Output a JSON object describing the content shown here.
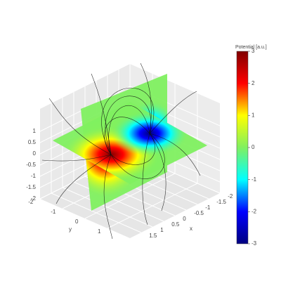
{
  "chart_data": {
    "type": "surface",
    "colorbar_title": "Potential [a.u.]",
    "clim": [
      -3,
      3
    ],
    "colorbar_ticks": [
      -3,
      -2,
      -1,
      0,
      1,
      2,
      3
    ],
    "colorscale": [
      "#000080",
      "#0000ff",
      "#00ffff",
      "#80f060",
      "#ffff00",
      "#ff0000",
      "#800000"
    ],
    "xlabel": "x",
    "ylabel": "y",
    "xlim": [
      -2,
      2
    ],
    "ylim": [
      -2,
      2
    ],
    "zlim": [
      -2,
      2
    ],
    "xticks": [
      -2,
      -1.5,
      -1,
      -0.5,
      0,
      0.5,
      1,
      1.5
    ],
    "yticks": [
      -2,
      -1,
      0,
      1
    ],
    "zticks": [
      -2,
      -1.5,
      -1,
      -0.5,
      0,
      0.5,
      1
    ],
    "grid": true
  }
}
